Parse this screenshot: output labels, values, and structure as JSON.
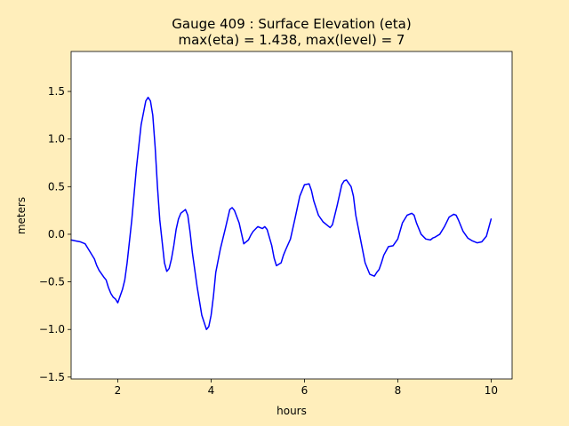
{
  "chart_data": {
    "type": "line",
    "title": "Gauge 409 : Surface Elevation (eta)",
    "subtitle": "max(eta) =   1.438,    max(level) = 7",
    "xlabel": "hours",
    "ylabel": "meters",
    "xlim": [
      1.0,
      10.45
    ],
    "ylim": [
      -1.52,
      1.92
    ],
    "xticks": [
      2,
      4,
      6,
      8,
      10
    ],
    "yticks": [
      -1.5,
      -1.0,
      -0.5,
      0.0,
      0.5,
      1.0,
      1.5
    ],
    "xtick_labels": [
      "2",
      "4",
      "6",
      "8",
      "10"
    ],
    "ytick_labels": [
      "−1.5",
      "−1.0",
      "−0.5",
      "0.0",
      "0.5",
      "1.0",
      "1.5"
    ],
    "grid": false,
    "series": [
      {
        "color": "#0000ff",
        "x": [
          1.0,
          1.1,
          1.2,
          1.3,
          1.35,
          1.4,
          1.5,
          1.55,
          1.6,
          1.7,
          1.75,
          1.8,
          1.85,
          1.9,
          1.95,
          2.0,
          2.05,
          2.1,
          2.15,
          2.2,
          2.3,
          2.4,
          2.5,
          2.6,
          2.65,
          2.7,
          2.75,
          2.8,
          2.85,
          2.9,
          3.0,
          3.05,
          3.1,
          3.15,
          3.2,
          3.25,
          3.3,
          3.35,
          3.4,
          3.45,
          3.5,
          3.55,
          3.6,
          3.7,
          3.8,
          3.9,
          3.95,
          4.0,
          4.05,
          4.1,
          4.2,
          4.3,
          4.4,
          4.45,
          4.5,
          4.6,
          4.7,
          4.8,
          4.85,
          4.9,
          5.0,
          5.1,
          5.15,
          5.2,
          5.3,
          5.35,
          5.4,
          5.5,
          5.55,
          5.6,
          5.7,
          5.8,
          5.9,
          6.0,
          6.1,
          6.15,
          6.2,
          6.3,
          6.4,
          6.5,
          6.55,
          6.6,
          6.7,
          6.8,
          6.85,
          6.9,
          7.0,
          7.05,
          7.1,
          7.2,
          7.3,
          7.4,
          7.5,
          7.55,
          7.6,
          7.65,
          7.7,
          7.8,
          7.9,
          8.0,
          8.1,
          8.2,
          8.3,
          8.35,
          8.4,
          8.5,
          8.6,
          8.7,
          8.75,
          8.8,
          8.9,
          9.0,
          9.1,
          9.2,
          9.25,
          9.3,
          9.4,
          9.5,
          9.6,
          9.7,
          9.8,
          9.9,
          10.0
        ],
        "y": [
          -0.06,
          -0.07,
          -0.08,
          -0.1,
          -0.14,
          -0.18,
          -0.26,
          -0.33,
          -0.38,
          -0.45,
          -0.48,
          -0.56,
          -0.62,
          -0.66,
          -0.68,
          -0.72,
          -0.65,
          -0.58,
          -0.48,
          -0.3,
          0.15,
          0.7,
          1.15,
          1.4,
          1.438,
          1.4,
          1.25,
          0.92,
          0.5,
          0.15,
          -0.3,
          -0.39,
          -0.36,
          -0.26,
          -0.12,
          0.05,
          0.16,
          0.22,
          0.24,
          0.26,
          0.2,
          0.02,
          -0.2,
          -0.55,
          -0.85,
          -1.0,
          -0.97,
          -0.85,
          -0.65,
          -0.4,
          -0.15,
          0.05,
          0.26,
          0.28,
          0.25,
          0.12,
          -0.1,
          -0.06,
          -0.01,
          0.03,
          0.08,
          0.06,
          0.08,
          0.05,
          -0.12,
          -0.25,
          -0.33,
          -0.3,
          -0.22,
          -0.16,
          -0.05,
          0.17,
          0.4,
          0.52,
          0.53,
          0.46,
          0.35,
          0.2,
          0.13,
          0.09,
          0.07,
          0.1,
          0.3,
          0.52,
          0.56,
          0.57,
          0.5,
          0.4,
          0.2,
          -0.05,
          -0.3,
          -0.42,
          -0.44,
          -0.4,
          -0.37,
          -0.3,
          -0.22,
          -0.13,
          -0.12,
          -0.05,
          0.12,
          0.2,
          0.22,
          0.2,
          0.12,
          0.0,
          -0.05,
          -0.06,
          -0.04,
          -0.03,
          0.0,
          0.08,
          0.18,
          0.21,
          0.2,
          0.15,
          0.03,
          -0.04,
          -0.07,
          -0.09,
          -0.08,
          -0.02,
          0.16
        ]
      }
    ]
  }
}
